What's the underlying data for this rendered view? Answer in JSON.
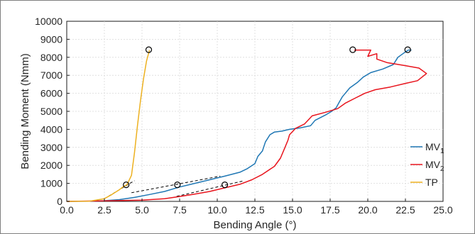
{
  "chart_data": {
    "type": "line",
    "title": "",
    "xlabel": "Bending Angle (°)",
    "ylabel": "Bending Moment (Nmm)",
    "xlim": [
      0,
      25
    ],
    "ylim": [
      0,
      10000
    ],
    "xticks": [
      "0.0",
      "2.5",
      "5.0",
      "7.5",
      "10.0",
      "12.5",
      "15.0",
      "17.5",
      "20.0",
      "22.5",
      "25.0"
    ],
    "yticks": [
      "0",
      "1000",
      "2000",
      "3000",
      "4000",
      "5000",
      "6000",
      "7000",
      "8000",
      "9000",
      "10000"
    ],
    "grid": true,
    "legend_position": "lower-right",
    "series": [
      {
        "name": "MV",
        "subscript": "1",
        "color": "#1f77b4",
        "points": [
          [
            0,
            0
          ],
          [
            1.5,
            10
          ],
          [
            2.5,
            40
          ],
          [
            3.5,
            100
          ],
          [
            4.5,
            220
          ],
          [
            5.5,
            380
          ],
          [
            6.5,
            550
          ],
          [
            7.5,
            800
          ],
          [
            8.5,
            1000
          ],
          [
            9.5,
            1200
          ],
          [
            10.5,
            1400
          ],
          [
            11.5,
            1620
          ],
          [
            12.0,
            1820
          ],
          [
            12.5,
            2100
          ],
          [
            12.7,
            2500
          ],
          [
            13.0,
            2800
          ],
          [
            13.2,
            3300
          ],
          [
            13.5,
            3700
          ],
          [
            13.8,
            3850
          ],
          [
            14.3,
            3900
          ],
          [
            14.8,
            4000
          ],
          [
            15.5,
            4080
          ],
          [
            16.2,
            4200
          ],
          [
            16.5,
            4500
          ],
          [
            17.2,
            4800
          ],
          [
            17.6,
            5000
          ],
          [
            17.9,
            5200
          ],
          [
            18.1,
            5500
          ],
          [
            18.3,
            5800
          ],
          [
            18.8,
            6300
          ],
          [
            19.3,
            6600
          ],
          [
            19.7,
            6900
          ],
          [
            20.2,
            7150
          ],
          [
            21.0,
            7350
          ],
          [
            21.7,
            7600
          ],
          [
            22.0,
            8000
          ],
          [
            22.5,
            8300
          ],
          [
            22.7,
            8400
          ],
          [
            22.9,
            8400
          ]
        ]
      },
      {
        "name": "MV",
        "subscript": "2",
        "color": "#e8141d",
        "points": [
          [
            0,
            0
          ],
          [
            2.5,
            30
          ],
          [
            5.0,
            70
          ],
          [
            6.5,
            150
          ],
          [
            7.5,
            270
          ],
          [
            8.5,
            400
          ],
          [
            9.5,
            550
          ],
          [
            10.5,
            750
          ],
          [
            11.5,
            950
          ],
          [
            12.3,
            1200
          ],
          [
            13.0,
            1500
          ],
          [
            13.8,
            1950
          ],
          [
            14.2,
            2400
          ],
          [
            14.5,
            3000
          ],
          [
            14.7,
            3400
          ],
          [
            14.8,
            3700
          ],
          [
            15.2,
            4050
          ],
          [
            15.8,
            4300
          ],
          [
            16.3,
            4750
          ],
          [
            17.2,
            4950
          ],
          [
            18.0,
            5150
          ],
          [
            18.5,
            5450
          ],
          [
            19.2,
            5750
          ],
          [
            19.8,
            6000
          ],
          [
            20.5,
            6200
          ],
          [
            21.5,
            6350
          ],
          [
            22.5,
            6550
          ],
          [
            23.3,
            6700
          ],
          [
            23.9,
            7100
          ],
          [
            23.4,
            7400
          ],
          [
            22.4,
            7550
          ],
          [
            21.3,
            7700
          ],
          [
            20.6,
            7900
          ],
          [
            20.6,
            8200
          ],
          [
            20.0,
            8050
          ],
          [
            20.2,
            8400
          ],
          [
            19.1,
            8400
          ]
        ]
      },
      {
        "name": "TP",
        "subscript": "",
        "color": "#edb120",
        "points": [
          [
            0,
            0
          ],
          [
            1.5,
            10
          ],
          [
            2.5,
            150
          ],
          [
            3.0,
            380
          ],
          [
            3.5,
            650
          ],
          [
            3.8,
            850
          ],
          [
            4.0,
            920
          ],
          [
            4.3,
            1450
          ],
          [
            4.5,
            2700
          ],
          [
            4.7,
            4200
          ],
          [
            4.9,
            5600
          ],
          [
            5.1,
            6800
          ],
          [
            5.3,
            7800
          ],
          [
            5.5,
            8400
          ]
        ]
      }
    ],
    "fit_lines": [
      {
        "points": [
          [
            2.5,
            150
          ],
          [
            4.5,
            1150
          ]
        ]
      },
      {
        "points": [
          [
            4.3,
            480
          ],
          [
            10.2,
            1400
          ]
        ]
      },
      {
        "points": [
          [
            7.3,
            280
          ],
          [
            11.8,
            1150
          ]
        ]
      }
    ],
    "markers": [
      [
        3.95,
        920
      ],
      [
        7.35,
        920
      ],
      [
        10.5,
        920
      ],
      [
        5.45,
        8420
      ],
      [
        19.0,
        8420
      ],
      [
        22.65,
        8420
      ]
    ]
  }
}
